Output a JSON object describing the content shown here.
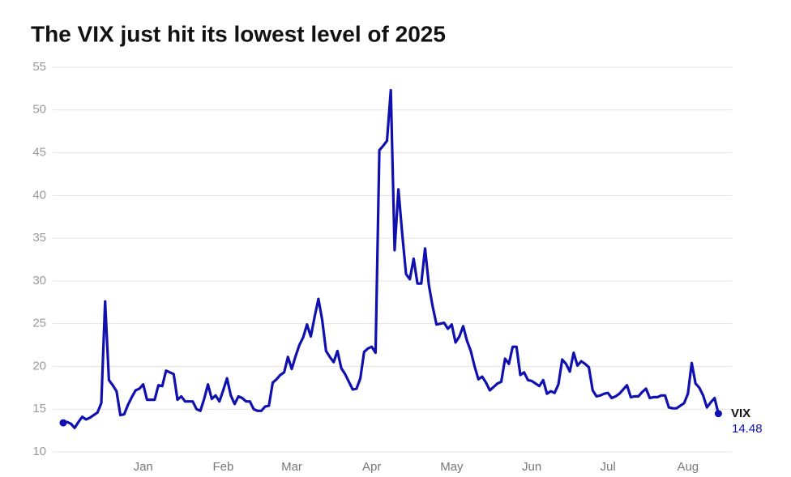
{
  "chart_data": {
    "type": "line",
    "title": "The VIX just hit its lowest level of 2025",
    "categories": [
      null,
      null,
      null,
      null,
      null,
      null,
      null,
      null,
      null,
      null,
      null,
      null,
      null,
      null,
      null,
      null,
      null,
      null,
      null,
      null,
      null,
      "Jan",
      null,
      null,
      null,
      null,
      null,
      null,
      null,
      null,
      null,
      null,
      null,
      null,
      null,
      null,
      null,
      null,
      null,
      null,
      null,
      null,
      "Feb",
      null,
      null,
      null,
      null,
      null,
      null,
      null,
      null,
      null,
      null,
      null,
      null,
      null,
      null,
      null,
      null,
      null,
      "Mar",
      null,
      null,
      null,
      null,
      null,
      null,
      null,
      null,
      null,
      null,
      null,
      null,
      null,
      null,
      null,
      null,
      null,
      null,
      null,
      null,
      "Apr",
      null,
      null,
      null,
      null,
      null,
      null,
      null,
      null,
      null,
      null,
      null,
      null,
      null,
      null,
      null,
      null,
      null,
      null,
      null,
      null,
      "May",
      null,
      null,
      null,
      null,
      null,
      null,
      null,
      null,
      null,
      null,
      null,
      null,
      null,
      null,
      null,
      null,
      null,
      null,
      null,
      null,
      "Jun",
      null,
      null,
      null,
      null,
      null,
      null,
      null,
      null,
      null,
      null,
      null,
      null,
      null,
      null,
      null,
      null,
      null,
      null,
      null,
      "Jul",
      null,
      null,
      null,
      null,
      null,
      null,
      null,
      null,
      null,
      null,
      null,
      null,
      null,
      null,
      null,
      null,
      null,
      null,
      null,
      null,
      "Aug",
      null,
      null,
      null,
      null,
      null,
      null,
      null,
      null
    ],
    "series": [
      {
        "name": "VIX",
        "color": "#1010b0",
        "values": [
          13.4,
          13.5,
          13.3,
          12.8,
          13.5,
          14.1,
          13.8,
          14.0,
          14.3,
          14.6,
          15.7,
          27.6,
          18.4,
          17.8,
          17.1,
          14.3,
          14.4,
          15.5,
          16.4,
          17.2,
          17.4,
          17.9,
          16.1,
          16.1,
          16.1,
          17.8,
          17.7,
          19.5,
          19.3,
          19.1,
          16.1,
          16.5,
          15.9,
          15.9,
          15.9,
          15.0,
          14.8,
          16.2,
          17.9,
          16.2,
          16.6,
          15.9,
          17.2,
          18.6,
          16.6,
          15.6,
          16.5,
          16.3,
          15.9,
          15.9,
          15.0,
          14.8,
          14.8,
          15.3,
          15.4,
          18.1,
          18.5,
          19.0,
          19.3,
          21.1,
          19.7,
          21.2,
          22.5,
          23.4,
          24.9,
          23.5,
          25.8,
          27.9,
          25.4,
          21.8,
          21.1,
          20.5,
          21.8,
          19.8,
          19.1,
          18.2,
          17.3,
          17.4,
          18.6,
          21.7,
          22.1,
          22.3,
          21.6,
          45.3,
          45.8,
          46.4,
          52.3,
          33.6,
          40.7,
          35.5,
          30.8,
          30.2,
          32.6,
          29.7,
          29.7,
          33.8,
          29.5,
          27.0,
          24.9,
          25.0,
          25.1,
          24.4,
          24.9,
          22.8,
          23.5,
          24.7,
          23.0,
          21.8,
          20.0,
          18.5,
          18.8,
          18.1,
          17.2,
          17.6,
          18.0,
          18.2,
          20.9,
          20.3,
          22.3,
          22.3,
          19.0,
          19.3,
          18.4,
          18.3,
          18.0,
          17.7,
          18.4,
          16.8,
          17.1,
          16.9,
          17.9,
          20.8,
          20.3,
          19.4,
          21.6,
          20.1,
          20.6,
          20.3,
          19.9,
          17.2,
          16.5,
          16.6,
          16.8,
          16.9,
          16.3,
          16.5,
          16.8,
          17.3,
          17.8,
          16.4,
          16.5,
          16.5,
          17.0,
          17.4,
          16.3,
          16.4,
          16.4,
          16.6,
          16.6,
          15.2,
          15.1,
          15.1,
          15.4,
          15.7,
          16.8,
          20.4,
          18.0,
          17.5,
          16.6,
          15.2,
          15.8,
          16.3,
          14.48
        ]
      }
    ],
    "ylim": [
      10,
      55
    ],
    "yticks": [
      10,
      15,
      20,
      25,
      30,
      35,
      40,
      45,
      50,
      55
    ],
    "grid": true
  }
}
